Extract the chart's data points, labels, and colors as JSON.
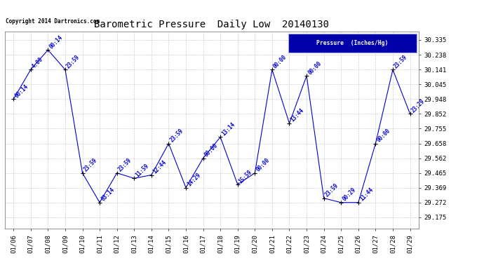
{
  "title": "Barometric Pressure  Daily Low  20140130",
  "copyright": "Copyright 2014 Dartronics.com",
  "legend_label": "Pressure  (Inches/Hg)",
  "x_labels": [
    "01/06",
    "01/07",
    "01/08",
    "01/09",
    "01/10",
    "01/11",
    "01/12",
    "01/13",
    "01/14",
    "01/15",
    "01/16",
    "01/17",
    "01/18",
    "01/19",
    "01/20",
    "01/21",
    "01/22",
    "01/23",
    "01/24",
    "01/25",
    "01/26",
    "01/27",
    "01/28",
    "01/29"
  ],
  "y_values": [
    29.948,
    30.141,
    30.27,
    30.141,
    29.465,
    29.272,
    29.465,
    29.43,
    29.452,
    29.658,
    29.369,
    29.562,
    29.7,
    29.39,
    29.465,
    30.141,
    29.79,
    30.1,
    29.3,
    29.272,
    29.272,
    29.658,
    30.141,
    29.852
  ],
  "time_labels": [
    "00:14",
    "4:00",
    "00:14",
    "23:59",
    "23:59",
    "03:14",
    "23:59",
    "11:59",
    "12:44",
    "23:59",
    "14:29",
    "00:00",
    "13:14",
    "15:59",
    "00:00",
    "00:00",
    "13:44",
    "00:00",
    "23:59",
    "00:29",
    "11:44",
    "00:00",
    "23:59",
    "23:29"
  ],
  "y_ticks": [
    29.175,
    29.272,
    29.369,
    29.465,
    29.562,
    29.658,
    29.755,
    29.852,
    29.948,
    30.045,
    30.141,
    30.238,
    30.335
  ],
  "ylim": [
    29.1,
    30.39
  ],
  "line_color": "#0000cc",
  "marker_color": "#000000",
  "bg_color": "#ffffff",
  "grid_color": "#bbbbbb",
  "title_fontsize": 10,
  "tick_fontsize": 6.5,
  "annotation_fontsize": 5.5,
  "legend_bg": "#0000aa",
  "legend_fg": "#ffffff"
}
